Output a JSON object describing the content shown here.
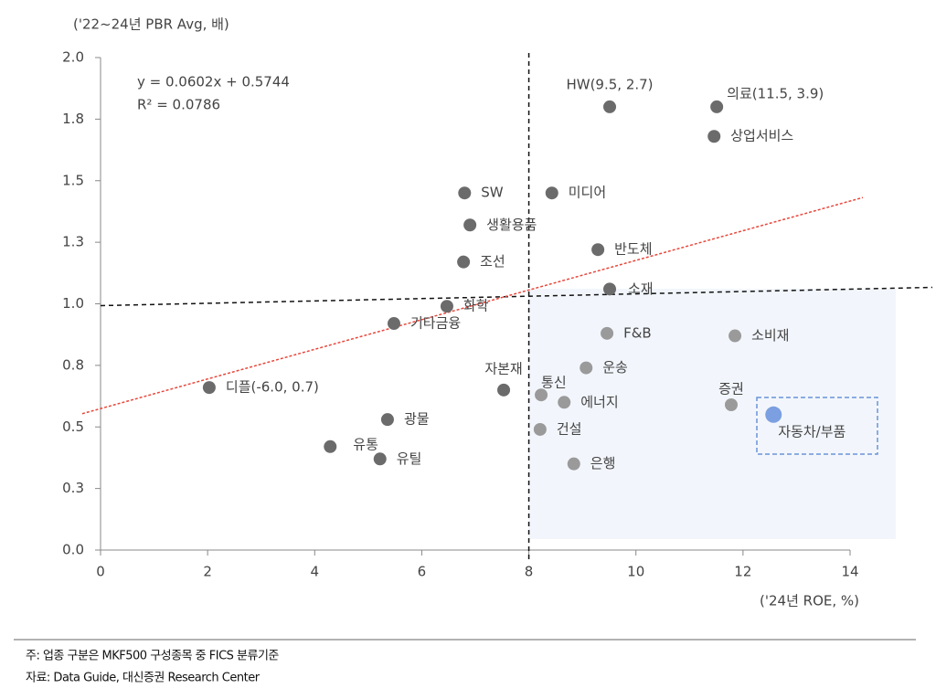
{
  "chart_data": {
    "type": "scatter",
    "y_axis_label": "('22~24년 PBR Avg, 배)",
    "x_axis_label": "('24년 ROE, %)",
    "equation": "y = 0.0602x + 0.5744",
    "r_squared": "R²  = 0.0786",
    "trendline": {
      "slope": 0.0602,
      "intercept": 0.5744,
      "color": "#e8473b"
    },
    "reference_lines": {
      "x": 8,
      "y": 1.0
    },
    "xlim": [
      0,
      14
    ],
    "ylim": [
      0,
      2
    ],
    "xticks": [
      0,
      2,
      4,
      6,
      8,
      10,
      12,
      14
    ],
    "yticks": [
      {
        "value": 0,
        "label": "0.0"
      },
      {
        "value": 0.25,
        "label": "0.3"
      },
      0.5,
      {
        "value": 0.75,
        "label": "0.8"
      },
      {
        "value": 1.0,
        "label": "1.0"
      },
      {
        "value": 1.25,
        "label": "1.3"
      },
      1.5,
      {
        "value": 1.75,
        "label": "1.8"
      },
      {
        "value": 2.0,
        "label": "2.0"
      }
    ],
    "labels": [
      "HW(9.5, 2.7)",
      "의료(11.5, 3.9)",
      "상업서비스",
      "SW",
      "미디어",
      "생활용품",
      "반도체",
      "조선",
      "소재",
      "화학",
      "기타금융",
      "F&B",
      "소비재",
      "자본재",
      "운송",
      "디플(-6.0, 0.7)",
      "통신",
      "에너지",
      "증권",
      "자동차/부품",
      "광물",
      "건설",
      "유통",
      "유틸",
      "은행"
    ],
    "x": [
      9.51,
      11.51,
      11.46,
      6.8,
      8.43,
      6.9,
      9.29,
      6.78,
      9.51,
      6.47,
      5.48,
      9.46,
      11.85,
      7.53,
      9.07,
      2.03,
      8.23,
      8.66,
      11.78,
      12.57,
      5.36,
      8.21,
      4.29,
      5.22,
      8.84
    ],
    "values": [
      1.8,
      1.8,
      1.68,
      1.45,
      1.45,
      1.32,
      1.22,
      1.17,
      1.06,
      0.99,
      0.92,
      0.88,
      0.87,
      0.65,
      0.74,
      0.66,
      0.63,
      0.6,
      0.59,
      0.55,
      0.53,
      0.49,
      0.42,
      0.37,
      0.35
    ],
    "colors": [
      "#6b6b6b",
      "#6b6b6b",
      "#6b6b6b",
      "#6b6b6b",
      "#6b6b6b",
      "#6b6b6b",
      "#6b6b6b",
      "#6b6b6b",
      "#6b6b6b",
      "#6b6b6b",
      "#6b6b6b",
      "#9a9a9a",
      "#9a9a9a",
      "#6b6b6b",
      "#9a9a9a",
      "#6b6b6b",
      "#9a9a9a",
      "#9a9a9a",
      "#9a9a9a",
      "#7b9fe0",
      "#6b6b6b",
      "#9a9a9a",
      "#6b6b6b",
      "#6b6b6b",
      "#9a9a9a"
    ]
  },
  "notes": [
    "주: 업종 구분은 MKF500 구성종목 중 FICS 분류기준",
    "자료: Data Guide, 대신증권 Research Center"
  ]
}
